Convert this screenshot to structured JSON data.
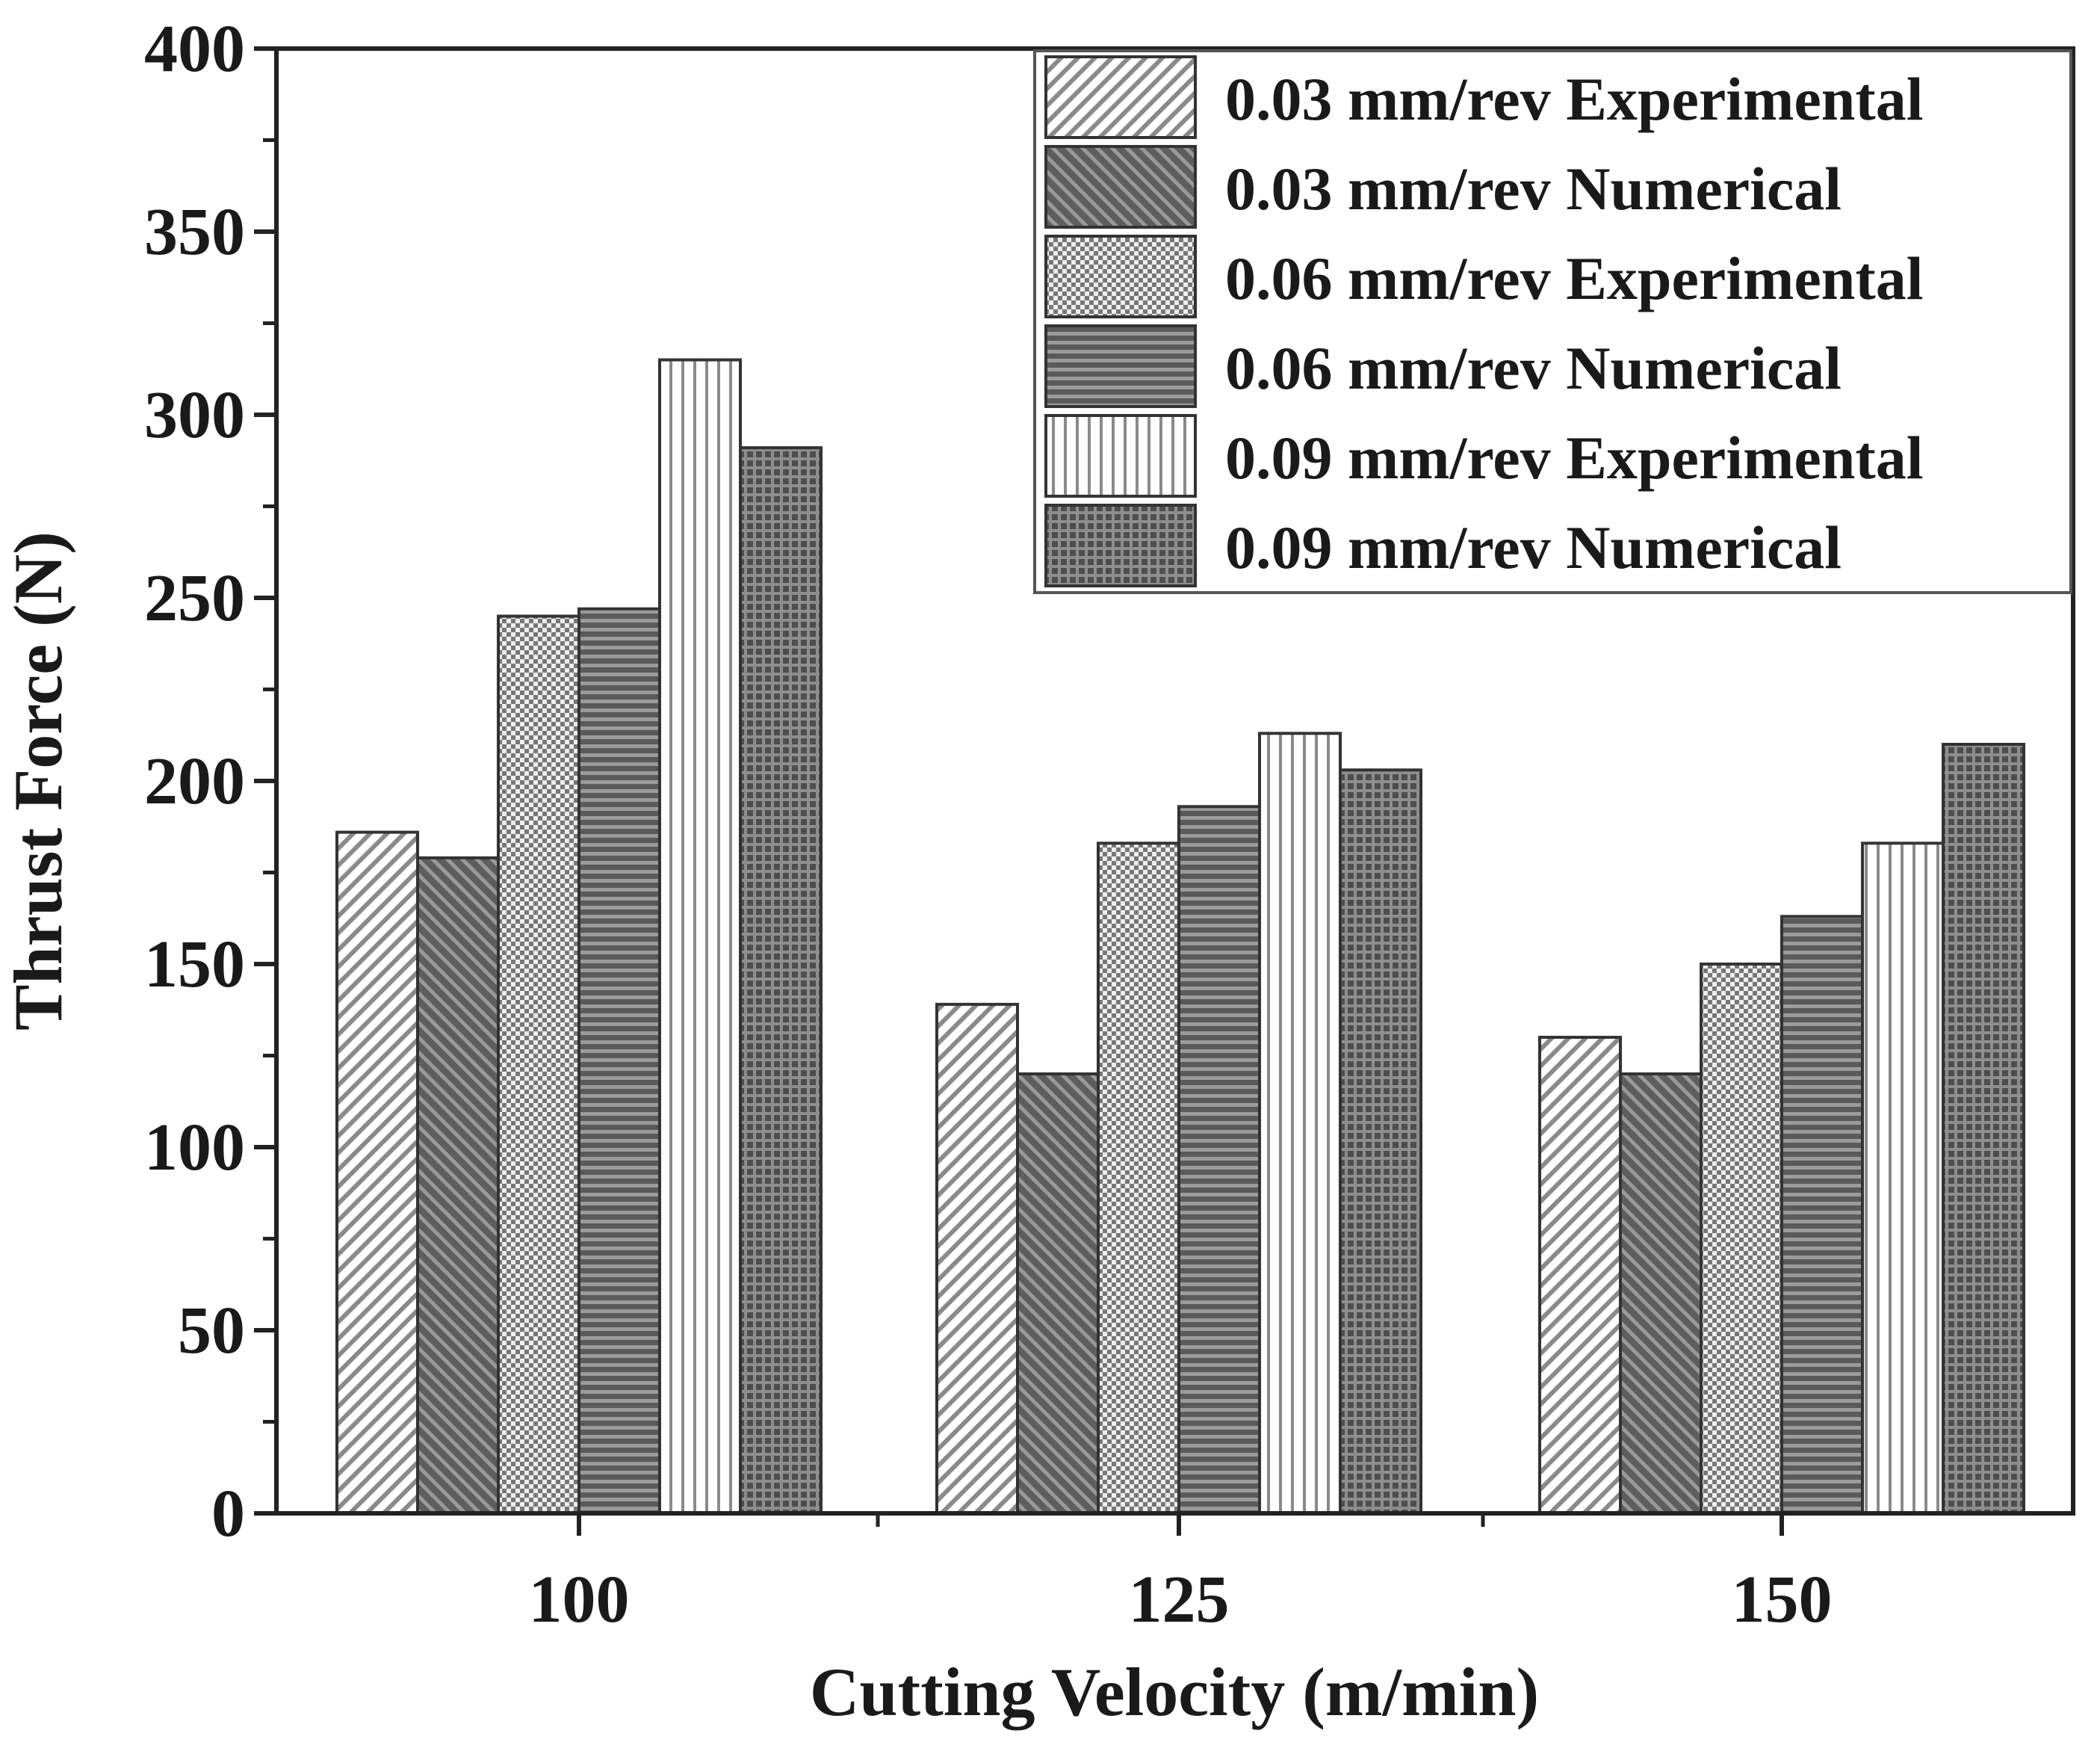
{
  "chart_data": {
    "type": "bar",
    "title": "",
    "xlabel": "Cutting Velocity (m/min)",
    "ylabel": "Thrust Force (N)",
    "categories": [
      "100",
      "125",
      "150"
    ],
    "ylim": [
      0,
      400
    ],
    "yticks": [
      "0",
      "50",
      "100",
      "150",
      "200",
      "250",
      "300",
      "350",
      "400"
    ],
    "grid": false,
    "legend_position": "top-right",
    "series": [
      {
        "name": "0.03 mm/rev Experimental",
        "values": [
          186,
          139,
          130
        ],
        "pattern": "diag-light",
        "color": "#ffffff"
      },
      {
        "name": "0.03 mm/rev Numerical",
        "values": [
          179,
          120,
          120
        ],
        "pattern": "diag-dark",
        "color": "#6b6b6b"
      },
      {
        "name": "0.06 mm/rev Experimental",
        "values": [
          245,
          183,
          150
        ],
        "pattern": "check-light",
        "color": "#d9d9d9"
      },
      {
        "name": "0.06 mm/rev Numerical",
        "values": [
          247,
          193,
          163
        ],
        "pattern": "horiz-dark",
        "color": "#666666"
      },
      {
        "name": "0.09 mm/rev Experimental",
        "values": [
          315,
          213,
          183
        ],
        "pattern": "vert-light",
        "color": "#ffffff"
      },
      {
        "name": "0.09 mm/rev Numerical",
        "values": [
          291,
          203,
          210
        ],
        "pattern": "grid-dark",
        "color": "#575757"
      }
    ]
  }
}
